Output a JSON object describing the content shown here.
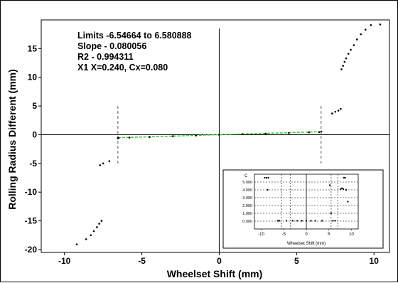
{
  "chart_data": [
    {
      "type": "scatter",
      "title": "",
      "xlabel": "Wheelset Shift (mm)",
      "ylabel": "Rolling Radius Different (mm)",
      "xlim": [
        -11.5,
        11
      ],
      "ylim": [
        -20.5,
        20
      ],
      "xticks": [
        -10,
        -5,
        0,
        5,
        10
      ],
      "yticks": [
        -20,
        -15,
        -10,
        -5,
        0,
        5,
        10,
        15
      ],
      "grid": false,
      "annotations": [
        "Limits -6.54664 to 6.580888",
        "Slope - 0.080056",
        "R2 - 0.994311",
        "X1 X=0.240, Cx=0.080"
      ],
      "limit_lines": [
        -6.54664,
        6.580888
      ],
      "fit_line": {
        "slope": 0.080056,
        "intercept": 0,
        "color": "#33cc33"
      },
      "series": [
        {
          "values": [
            [
              -9.2,
              -19.1
            ],
            [
              -8.6,
              -18.2
            ],
            [
              -8.3,
              -17.5
            ],
            [
              -8.1,
              -16.8
            ],
            [
              -7.9,
              -16.1
            ],
            [
              -7.75,
              -15.5
            ],
            [
              -7.6,
              -15.0
            ],
            [
              -7.7,
              -5.3
            ],
            [
              -7.5,
              -5.0
            ],
            [
              -7.1,
              -4.6
            ],
            [
              -6.55,
              -0.6
            ],
            [
              -6.5,
              -0.55
            ],
            [
              -5.8,
              -0.5
            ],
            [
              -4.5,
              -0.4
            ],
            [
              -3.0,
              -0.25
            ],
            [
              -1.5,
              -0.12
            ],
            [
              0.0,
              0.0
            ],
            [
              1.5,
              0.1
            ],
            [
              3.0,
              0.2
            ],
            [
              4.5,
              0.3
            ],
            [
              5.8,
              0.42
            ],
            [
              6.45,
              0.45
            ],
            [
              6.6,
              0.55
            ],
            [
              7.3,
              3.7
            ],
            [
              7.5,
              4.0
            ],
            [
              7.7,
              4.2
            ],
            [
              7.85,
              4.5
            ],
            [
              7.9,
              11.4
            ],
            [
              8.0,
              12.0
            ],
            [
              8.1,
              12.7
            ],
            [
              8.2,
              13.3
            ],
            [
              8.35,
              14.1
            ],
            [
              8.5,
              14.8
            ],
            [
              8.7,
              15.6
            ],
            [
              8.9,
              16.6
            ],
            [
              9.15,
              17.5
            ],
            [
              9.45,
              18.3
            ],
            [
              9.8,
              19.1
            ],
            [
              10.4,
              19.2
            ]
          ]
        }
      ]
    },
    {
      "type": "scatter",
      "title": "",
      "xlabel": "Wheelset Shift (mm)",
      "ylabel": "C",
      "xlim": [
        -11.5,
        11.5
      ],
      "ylim": [
        -1.0,
        6.0
      ],
      "xticks": [
        -10,
        -5,
        0,
        5,
        10
      ],
      "yticks": [
        "0.000",
        "1.000",
        "2.000",
        "3.000",
        "4.000",
        "5.000"
      ],
      "grid": true,
      "limit_lines": [
        -5.5,
        -3.5,
        5.5,
        7.0
      ],
      "series": [
        {
          "values": [
            [
              -9.2,
              5.55
            ],
            [
              -8.8,
              5.55
            ],
            [
              -8.4,
              5.55
            ],
            [
              -8.6,
              4.0
            ],
            [
              -6.3,
              0.05
            ],
            [
              -6.0,
              0.05
            ],
            [
              -4.4,
              0.05
            ],
            [
              -3.0,
              0.05
            ],
            [
              -2.0,
              0.05
            ],
            [
              -1.0,
              0.05
            ],
            [
              0.0,
              0.05
            ],
            [
              1.0,
              0.05
            ],
            [
              2.0,
              0.05
            ],
            [
              3.5,
              0.05
            ],
            [
              5.2,
              4.6
            ],
            [
              5.5,
              1.0
            ],
            [
              5.9,
              0.05
            ],
            [
              6.4,
              0.05
            ],
            [
              7.6,
              4.1
            ],
            [
              7.9,
              4.2
            ],
            [
              8.2,
              4.1
            ],
            [
              8.8,
              4.0
            ],
            [
              8.3,
              5.55
            ],
            [
              8.6,
              5.55
            ],
            [
              9.2,
              2.5
            ]
          ]
        }
      ]
    }
  ]
}
